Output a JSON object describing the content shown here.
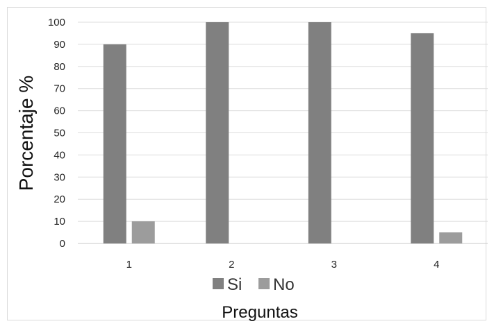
{
  "chart_data": {
    "type": "bar",
    "title": "",
    "xlabel": "Preguntas",
    "ylabel": "Porcentaje %",
    "categories": [
      "1",
      "2",
      "3",
      "4"
    ],
    "series": [
      {
        "name": "Si",
        "values": [
          90,
          100,
          100,
          95
        ],
        "color": "#808080"
      },
      {
        "name": "No",
        "values": [
          10,
          0,
          0,
          5
        ],
        "color": "#9c9c9c"
      }
    ],
    "ylim": [
      0,
      100
    ],
    "yticks": [
      "0",
      "10",
      "20",
      "30",
      "40",
      "50",
      "60",
      "70",
      "80",
      "90",
      "100"
    ],
    "grid": true,
    "legend_position": "bottom"
  }
}
